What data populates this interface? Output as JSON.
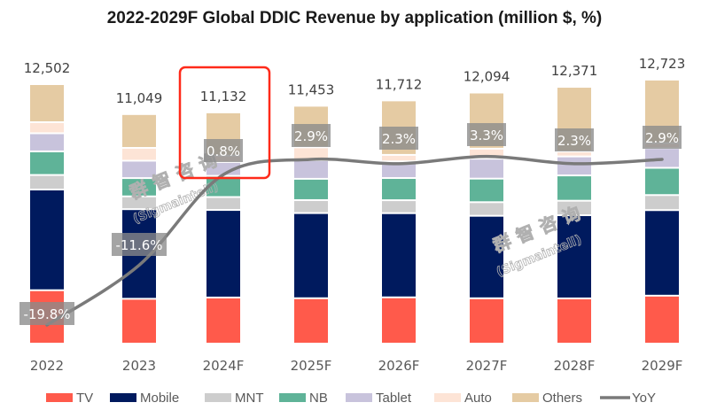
{
  "chart_data": {
    "type": "bar",
    "stacked": true,
    "title": "2022-2029F Global DDIC Revenue by application (million $, %)",
    "xlabel": "",
    "ylabel": "",
    "categories": [
      "2022",
      "2023",
      "2024F",
      "2025F",
      "2026F",
      "2027F",
      "2028F",
      "2029F"
    ],
    "totals": [
      "12,502",
      "11,049",
      "11,132",
      "11,453",
      "11,712",
      "12,094",
      "12,371",
      "12,723"
    ],
    "total_values": [
      12502,
      11049,
      11132,
      11453,
      11712,
      12094,
      12371,
      12723
    ],
    "series": [
      {
        "name": "TV",
        "color": "#ff5a4b",
        "values": [
          2590,
          2174,
          2236,
          2201,
          2244,
          2199,
          2193,
          2326
        ]
      },
      {
        "name": "Mobile",
        "color": "#001a5e",
        "values": [
          4885,
          4348,
          4248,
          4132,
          4084,
          4002,
          4036,
          4150
        ]
      },
      {
        "name": "MNT",
        "color": "#cdcdcd",
        "values": [
          705,
          621,
          626,
          629,
          628,
          660,
          702,
          730
        ]
      },
      {
        "name": "NB",
        "color": "#5fb398",
        "values": [
          1145,
          887,
          1028,
          1033,
          1077,
          1143,
          1228,
          1322
        ]
      },
      {
        "name": "Tablet",
        "color": "#c8c3dc",
        "values": [
          880,
          843,
          671,
          898,
          808,
          968,
          921,
          958
        ]
      },
      {
        "name": "Auto",
        "color": "#fde4d6",
        "values": [
          535,
          621,
          313,
          629,
          314,
          484,
          240,
          240
        ]
      },
      {
        "name": "Others",
        "color": "#e5cba3",
        "values": [
          1762,
          1555,
          2010,
          1931,
          2557,
          2638,
          3051,
          2997
        ]
      }
    ],
    "line_series": {
      "name": "YoY",
      "color": "#7a7a7a",
      "values": [
        -19.8,
        -11.6,
        0.8,
        2.9,
        2.3,
        3.3,
        2.3,
        2.9
      ],
      "labels": [
        "-19.8%",
        "-11.6%",
        "0.8%",
        "2.9%",
        "2.3%",
        "3.3%",
        "2.3%",
        "2.9%"
      ]
    },
    "ylim": [
      0,
      12502
    ],
    "grid": false,
    "legend": {
      "placement": "bottom",
      "entries": [
        "TV",
        "Mobile",
        "MNT",
        "NB",
        "Tablet",
        "Auto",
        "Others",
        "YoY"
      ]
    },
    "annotations": [
      {
        "type": "highlight-box",
        "target": "2024F",
        "color": "#ff2a1a"
      }
    ]
  },
  "watermark": {
    "cn": "群智咨询",
    "en": "(Sigmaintell)"
  }
}
